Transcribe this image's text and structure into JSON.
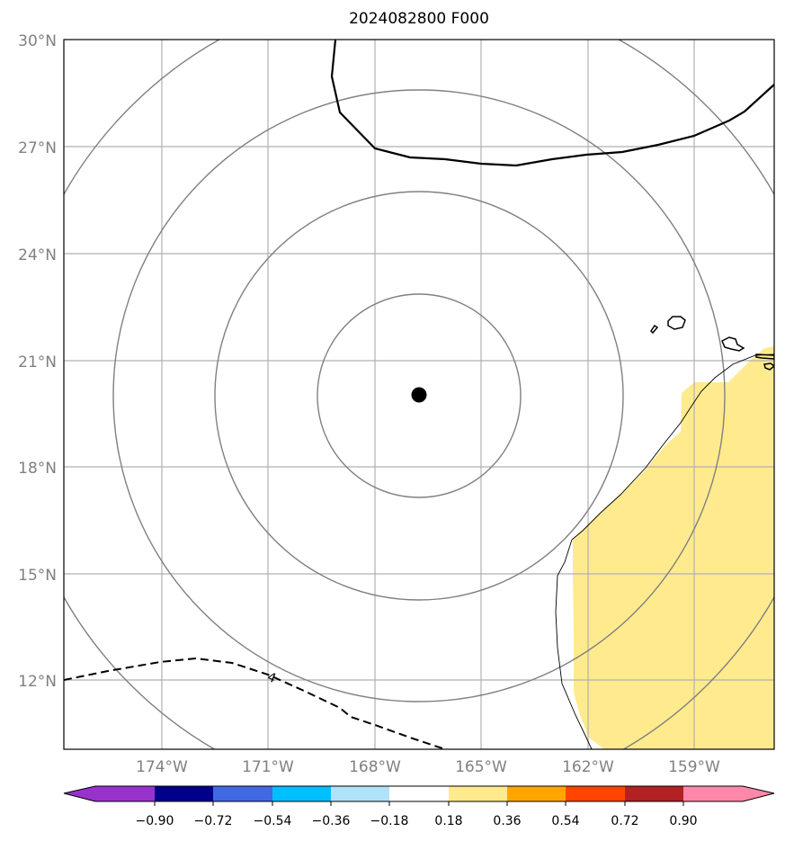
{
  "title": "2024082800 F000",
  "map": {
    "lat_ticks": [
      "30°N",
      "27°N",
      "24°N",
      "21°N",
      "18°N",
      "15°N",
      "12°N"
    ],
    "lon_ticks": [
      "174°W",
      "171°W",
      "168°W",
      "165°W",
      "162°W",
      "159°W"
    ],
    "center_marker": {
      "lon": -166.5,
      "lat": 20.0
    },
    "contour_label": "4",
    "shading_color": "#ffeb8e"
  },
  "colorbar": {
    "tick_labels": [
      "−0.90",
      "−0.72",
      "−0.54",
      "−0.36",
      "−0.18",
      "0.18",
      "0.36",
      "0.54",
      "0.72",
      "0.90"
    ],
    "colors": [
      "#9932cc",
      "#00008b",
      "#4169e1",
      "#00bfff",
      "#b0e2f8",
      "#ffffff",
      "#ffeb8e",
      "#ffa500",
      "#ff4500",
      "#b22222",
      "#ff88aa"
    ]
  }
}
